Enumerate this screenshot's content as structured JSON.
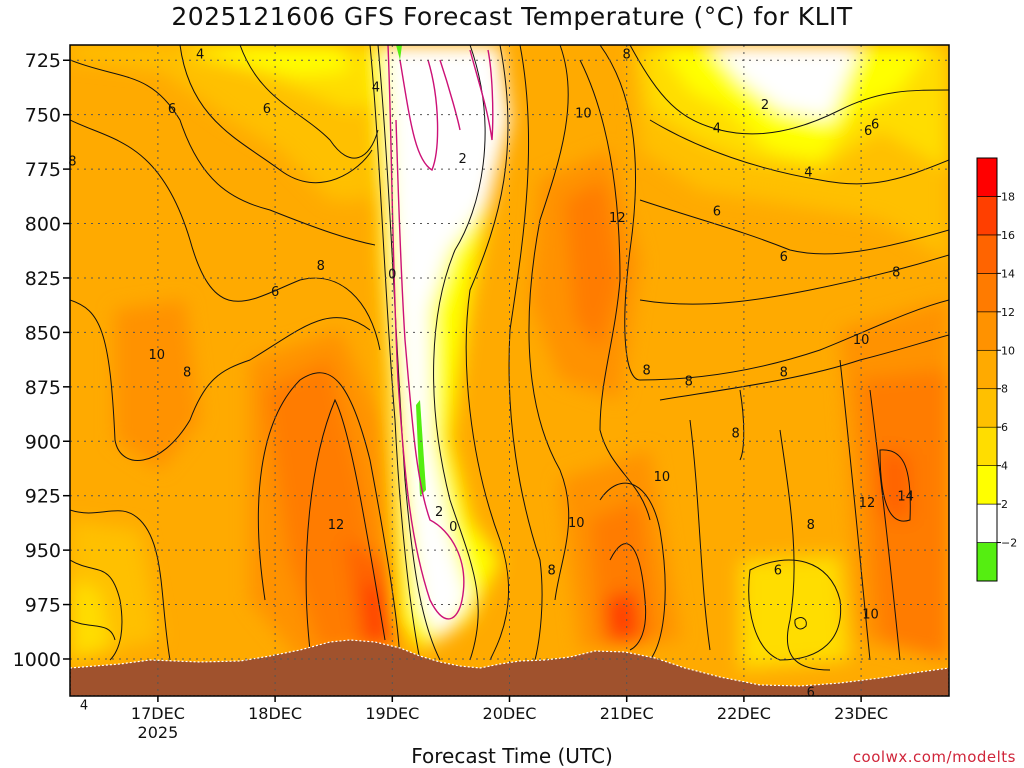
{
  "title": "2025121606 GFS Forecast Temperature (°C) for KLIT",
  "credit": "coolwx.com/modelts",
  "chart_data": {
    "type": "heatmap",
    "title": "2025121606 GFS Forecast Temperature (°C) for KLIT",
    "xlabel": "Forecast Time (UTC)",
    "ylabel": "",
    "y_ticks": [
      725,
      750,
      775,
      800,
      825,
      850,
      875,
      900,
      925,
      950,
      975,
      1000
    ],
    "y_range": [
      1017,
      718
    ],
    "x_ticks": [
      {
        "day": 17,
        "label": "17DEC",
        "sublabel": "2025"
      },
      {
        "day": 18,
        "label": "18DEC",
        "sublabel": ""
      },
      {
        "day": 19,
        "label": "19DEC",
        "sublabel": ""
      },
      {
        "day": 20,
        "label": "20DEC",
        "sublabel": ""
      },
      {
        "day": 21,
        "label": "21DEC",
        "sublabel": ""
      },
      {
        "day": 22,
        "label": "22DEC",
        "sublabel": ""
      },
      {
        "day": 23,
        "label": "23DEC",
        "sublabel": ""
      }
    ],
    "x_range": [
      16.25,
      23.75
    ],
    "grid": true,
    "colorbar": {
      "labels": [
        "18",
        "16",
        "14",
        "12",
        "10",
        "8",
        "6",
        "4",
        "2",
        "−2"
      ],
      "levels": [
        -4,
        -2,
        2,
        4,
        6,
        8,
        10,
        12,
        14,
        16,
        18,
        20
      ],
      "colors": [
        "#55ee11",
        "#ffffff",
        "#ffff00",
        "#ffdd00",
        "#ffc000",
        "#ffaa00",
        "#ff9200",
        "#ff7b00",
        "#ff6400",
        "#ff3f00",
        "#ff0000"
      ]
    },
    "surface_color": "#a0522d",
    "contour_labels": [
      {
        "text": "4",
        "x": 16.37,
        "p": 1021
      },
      {
        "text": "4",
        "x": 17.36,
        "p": 722
      },
      {
        "text": "6",
        "x": 17.12,
        "p": 747
      },
      {
        "text": "6",
        "x": 17.93,
        "p": 747
      },
      {
        "text": "8",
        "x": 16.27,
        "p": 771
      },
      {
        "text": "4",
        "x": 18.86,
        "p": 737
      },
      {
        "text": "2",
        "x": 19.6,
        "p": 770
      },
      {
        "text": "8",
        "x": 18.39,
        "p": 819
      },
      {
        "text": "6",
        "x": 18.0,
        "p": 831
      },
      {
        "text": "0",
        "x": 19.0,
        "p": 823
      },
      {
        "text": "10",
        "x": 16.99,
        "p": 860
      },
      {
        "text": "8",
        "x": 17.25,
        "p": 868
      },
      {
        "text": "12",
        "x": 18.52,
        "p": 938
      },
      {
        "text": "2",
        "x": 19.4,
        "p": 932
      },
      {
        "text": "0",
        "x": 19.52,
        "p": 939
      },
      {
        "text": "8",
        "x": 21.0,
        "p": 722
      },
      {
        "text": "10",
        "x": 20.63,
        "p": 749
      },
      {
        "text": "2",
        "x": 22.18,
        "p": 745
      },
      {
        "text": "4",
        "x": 21.77,
        "p": 756
      },
      {
        "text": "4",
        "x": 22.55,
        "p": 776
      },
      {
        "text": "6",
        "x": 23.12,
        "p": 754
      },
      {
        "text": "6",
        "x": 23.06,
        "p": 757
      },
      {
        "text": "12",
        "x": 20.92,
        "p": 797
      },
      {
        "text": "6",
        "x": 21.77,
        "p": 794
      },
      {
        "text": "6",
        "x": 22.34,
        "p": 815
      },
      {
        "text": "8",
        "x": 23.3,
        "p": 822
      },
      {
        "text": "10",
        "x": 23.0,
        "p": 853
      },
      {
        "text": "8",
        "x": 21.17,
        "p": 867
      },
      {
        "text": "8",
        "x": 21.53,
        "p": 872
      },
      {
        "text": "8",
        "x": 22.34,
        "p": 868
      },
      {
        "text": "8",
        "x": 21.93,
        "p": 896
      },
      {
        "text": "10",
        "x": 21.3,
        "p": 916
      },
      {
        "text": "10",
        "x": 20.57,
        "p": 937
      },
      {
        "text": "12",
        "x": 23.05,
        "p": 928
      },
      {
        "text": "14",
        "x": 23.38,
        "p": 925
      },
      {
        "text": "8",
        "x": 22.57,
        "p": 938
      },
      {
        "text": "8",
        "x": 20.36,
        "p": 959
      },
      {
        "text": "6",
        "x": 22.29,
        "p": 959
      },
      {
        "text": "10",
        "x": 23.08,
        "p": 979
      },
      {
        "text": "6",
        "x": 22.57,
        "p": 1015
      }
    ]
  }
}
